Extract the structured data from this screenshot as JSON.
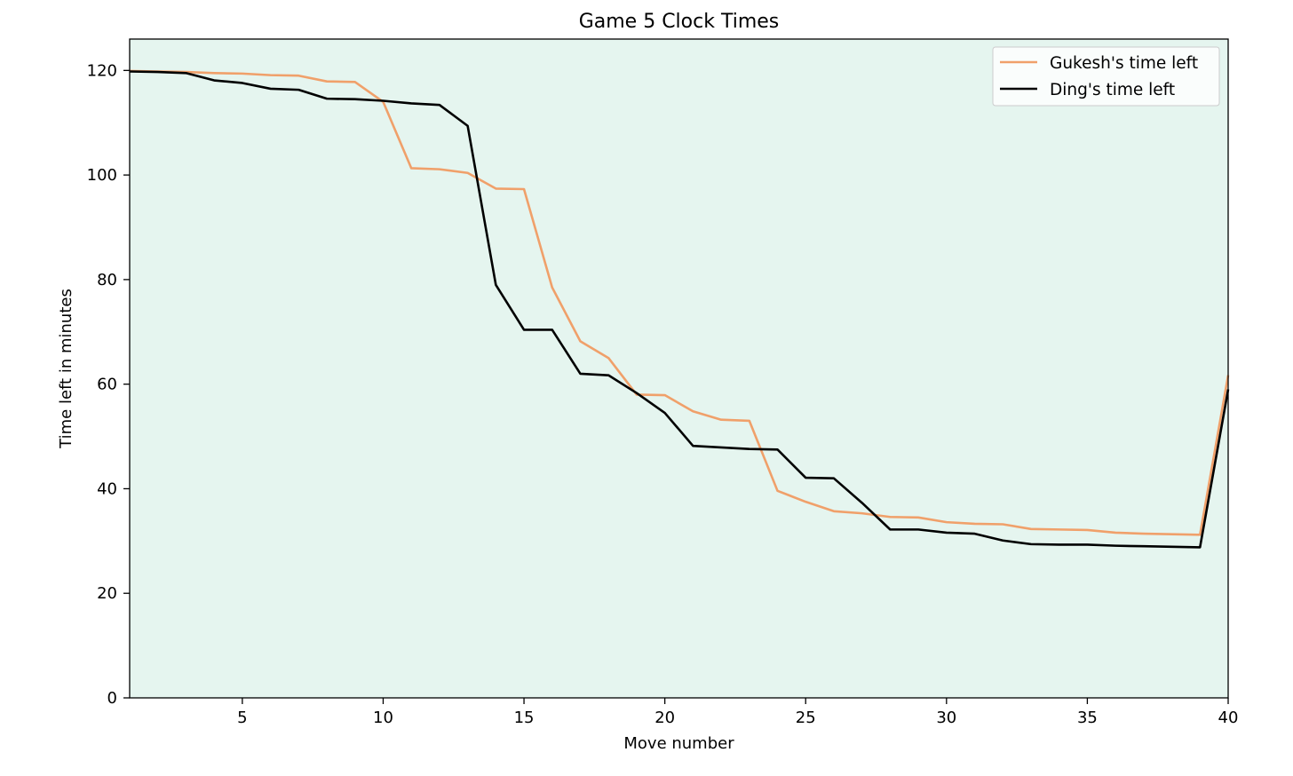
{
  "chart_data": {
    "type": "line",
    "title": "Game 5 Clock Times",
    "xlabel": "Move number",
    "ylabel": "Time left in minutes",
    "xlim": [
      1,
      40
    ],
    "ylim": [
      0,
      126
    ],
    "xticks": [
      5,
      10,
      15,
      20,
      25,
      30,
      35,
      40
    ],
    "yticks": [
      0,
      20,
      40,
      60,
      80,
      100,
      120
    ],
    "grid": false,
    "legend_position": "top-right",
    "background_color": "#e5f5ef",
    "x": [
      1,
      2,
      3,
      4,
      5,
      6,
      7,
      8,
      9,
      10,
      11,
      12,
      13,
      14,
      15,
      16,
      17,
      18,
      19,
      20,
      21,
      22,
      23,
      24,
      25,
      26,
      27,
      28,
      29,
      30,
      31,
      32,
      33,
      34,
      35,
      36,
      37,
      38,
      39,
      40
    ],
    "series": [
      {
        "name": "Gukesh's time left",
        "color": "#f0a06a",
        "values": [
          119.9,
          119.8,
          119.7,
          119.5,
          119.4,
          119.1,
          119.0,
          117.9,
          117.8,
          114.0,
          101.3,
          101.1,
          100.4,
          97.4,
          97.3,
          78.5,
          68.2,
          65.0,
          58.0,
          57.9,
          54.8,
          53.2,
          53.0,
          39.6,
          37.5,
          35.7,
          35.3,
          34.6,
          34.5,
          33.6,
          33.3,
          33.2,
          32.3,
          32.2,
          32.1,
          31.6,
          31.4,
          31.3,
          31.2,
          61.7
        ]
      },
      {
        "name": "Ding's time left",
        "color": "#000000",
        "values": [
          119.8,
          119.7,
          119.5,
          118.1,
          117.6,
          116.5,
          116.3,
          114.6,
          114.5,
          114.2,
          113.7,
          113.4,
          109.4,
          79.0,
          70.4,
          70.4,
          62.0,
          61.7,
          58.3,
          54.5,
          48.2,
          47.9,
          47.6,
          47.5,
          42.1,
          42.0,
          37.3,
          32.2,
          32.2,
          31.6,
          31.4,
          30.1,
          29.4,
          29.3,
          29.3,
          29.1,
          29.0,
          28.9,
          28.8,
          59.0
        ]
      }
    ]
  }
}
